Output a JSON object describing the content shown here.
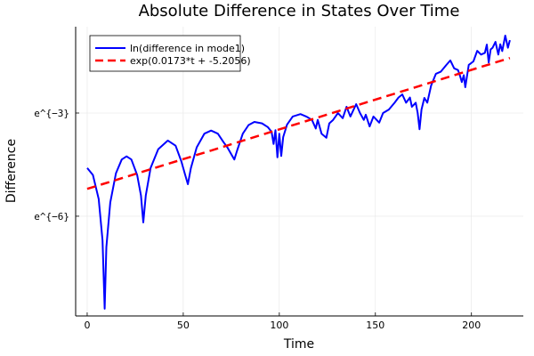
{
  "chart_data": {
    "type": "line",
    "title": "Absolute Difference in States Over Time",
    "xlabel": "Time",
    "ylabel": "Difference",
    "xlim": [
      -6,
      227
    ],
    "ylim_ln": [
      -8.9,
      -0.49
    ],
    "yscale": "log (natural)",
    "xticks": [
      0,
      50,
      100,
      150,
      200
    ],
    "xtick_labels": [
      "0",
      "50",
      "100",
      "150",
      "200"
    ],
    "yticks_ln": [
      -3,
      -6
    ],
    "ytick_labels": [
      "e^{−3}",
      "e^{−6}"
    ],
    "grid": true,
    "legend_position": "top-left",
    "series": [
      {
        "name": "ln(difference in mode1)",
        "color": "#0000ff",
        "style": "solid",
        "t": [
          0,
          3,
          6,
          8,
          9.1,
          10,
          12,
          15,
          18,
          20.5,
          23,
          26,
          28,
          29.2,
          30.5,
          33,
          37,
          42,
          46,
          49,
          51,
          52.4,
          54,
          57,
          61,
          64.5,
          68,
          71,
          73,
          75,
          76.6,
          78,
          81,
          84,
          87,
          91,
          94,
          96,
          97,
          98,
          99,
          100,
          101,
          102,
          104,
          107,
          111,
          114,
          117,
          119,
          120,
          122,
          124.5,
          126,
          128,
          130.5,
          133,
          135,
          137,
          140,
          142,
          144,
          145,
          147,
          149,
          152,
          154,
          157,
          160,
          162,
          164,
          166,
          168,
          169,
          171,
          172,
          173,
          174,
          175.5,
          177,
          179,
          181.5,
          184,
          187,
          189,
          191,
          193,
          194,
          195,
          196,
          196.8,
          198.6,
          201,
          203,
          205,
          207,
          208,
          209,
          210,
          211,
          212.5,
          214,
          215,
          216,
          217.6,
          219,
          220
        ],
        "ln_values": [
          -4.6,
          -4.8,
          -5.5,
          -6.7,
          -8.69,
          -6.9,
          -5.6,
          -4.75,
          -4.35,
          -4.26,
          -4.35,
          -4.8,
          -5.4,
          -6.18,
          -5.4,
          -4.6,
          -4.05,
          -3.8,
          -3.95,
          -4.4,
          -4.8,
          -5.07,
          -4.6,
          -4.0,
          -3.6,
          -3.51,
          -3.6,
          -3.85,
          -4.0,
          -4.2,
          -4.35,
          -4.1,
          -3.6,
          -3.35,
          -3.26,
          -3.3,
          -3.41,
          -3.55,
          -3.9,
          -3.5,
          -4.29,
          -3.6,
          -4.25,
          -3.7,
          -3.34,
          -3.1,
          -3.03,
          -3.1,
          -3.2,
          -3.45,
          -3.2,
          -3.6,
          -3.72,
          -3.3,
          -3.2,
          -3.0,
          -3.15,
          -2.82,
          -3.1,
          -2.74,
          -3.0,
          -3.2,
          -3.05,
          -3.39,
          -3.1,
          -3.28,
          -3.0,
          -2.9,
          -2.7,
          -2.55,
          -2.46,
          -2.7,
          -2.55,
          -2.82,
          -2.7,
          -3.0,
          -3.47,
          -2.9,
          -2.56,
          -2.7,
          -2.2,
          -1.86,
          -1.8,
          -1.6,
          -1.47,
          -1.7,
          -1.75,
          -1.91,
          -2.1,
          -1.9,
          -2.25,
          -1.6,
          -1.5,
          -1.19,
          -1.3,
          -1.25,
          -1.01,
          -1.53,
          -1.15,
          -1.1,
          -0.93,
          -1.3,
          -1.0,
          -1.2,
          -0.75,
          -1.1,
          -0.88
        ]
      },
      {
        "name": "exp(0.0173*t + -5.2056)",
        "color": "#ff0000",
        "style": "dashed",
        "slope": 0.0173,
        "intercept": -5.2056,
        "t_range": [
          0,
          220
        ]
      }
    ]
  }
}
